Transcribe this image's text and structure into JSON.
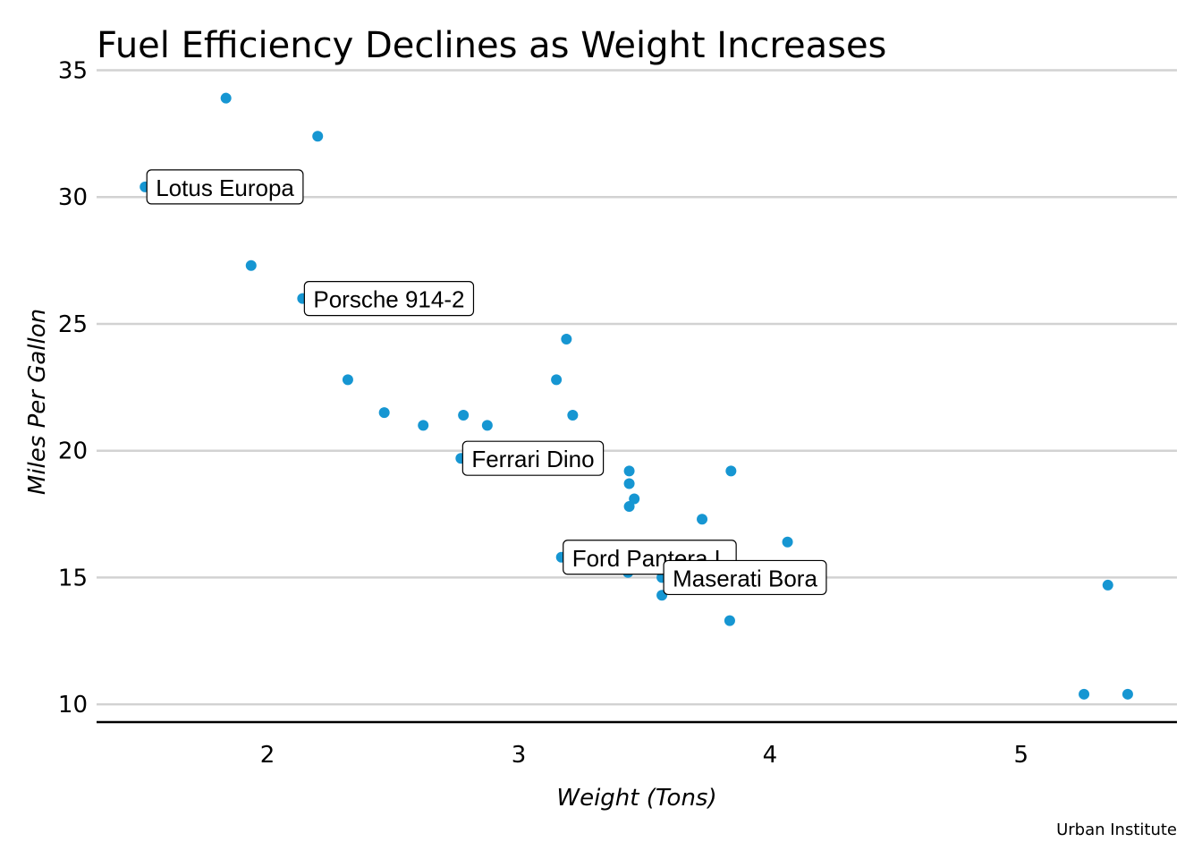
{
  "chart_data": {
    "type": "scatter",
    "title": "Fuel Efficiency Declines as Weight Increases",
    "xlabel": "Weight (Tons)",
    "ylabel": "Miles Per Gallon",
    "caption": "Urban Institute",
    "xlim": [
      1.32,
      5.62
    ],
    "ylim": [
      9.3,
      35.3
    ],
    "xticks": [
      2,
      3,
      4,
      5
    ],
    "yticks": [
      10,
      15,
      20,
      25,
      30,
      35
    ],
    "grid": "horizontal",
    "point_color": "#1696d2",
    "points": [
      {
        "x": 2.62,
        "y": 21.0
      },
      {
        "x": 2.875,
        "y": 21.0
      },
      {
        "x": 2.32,
        "y": 22.8
      },
      {
        "x": 3.215,
        "y": 21.4
      },
      {
        "x": 3.44,
        "y": 18.7
      },
      {
        "x": 3.46,
        "y": 18.1
      },
      {
        "x": 3.57,
        "y": 14.3
      },
      {
        "x": 3.19,
        "y": 24.4
      },
      {
        "x": 3.15,
        "y": 22.8
      },
      {
        "x": 3.44,
        "y": 19.2
      },
      {
        "x": 3.44,
        "y": 17.8
      },
      {
        "x": 4.07,
        "y": 16.4
      },
      {
        "x": 3.73,
        "y": 17.3
      },
      {
        "x": 3.78,
        "y": 15.2
      },
      {
        "x": 5.25,
        "y": 10.4
      },
      {
        "x": 5.424,
        "y": 10.4
      },
      {
        "x": 5.345,
        "y": 14.7
      },
      {
        "x": 2.2,
        "y": 32.4
      },
      {
        "x": 1.615,
        "y": 30.4
      },
      {
        "x": 1.835,
        "y": 33.9
      },
      {
        "x": 2.465,
        "y": 21.5
      },
      {
        "x": 3.52,
        "y": 15.5
      },
      {
        "x": 3.435,
        "y": 15.2
      },
      {
        "x": 3.84,
        "y": 13.3
      },
      {
        "x": 3.845,
        "y": 19.2
      },
      {
        "x": 1.935,
        "y": 27.3
      },
      {
        "x": 2.14,
        "y": 26.0
      },
      {
        "x": 1.513,
        "y": 30.4
      },
      {
        "x": 3.17,
        "y": 15.8
      },
      {
        "x": 2.77,
        "y": 19.7
      },
      {
        "x": 3.57,
        "y": 15.0
      },
      {
        "x": 2.78,
        "y": 21.4
      }
    ],
    "annotations": [
      {
        "label": "Lotus Europa",
        "x": 1.513,
        "y": 30.4
      },
      {
        "label": "Porsche 914-2",
        "x": 2.14,
        "y": 26.0
      },
      {
        "label": "Ferrari Dino",
        "x": 2.77,
        "y": 19.7
      },
      {
        "label": "Ford Pantera L",
        "x": 3.17,
        "y": 15.8
      },
      {
        "label": "Maserati Bora",
        "x": 3.57,
        "y": 15.0
      }
    ]
  }
}
